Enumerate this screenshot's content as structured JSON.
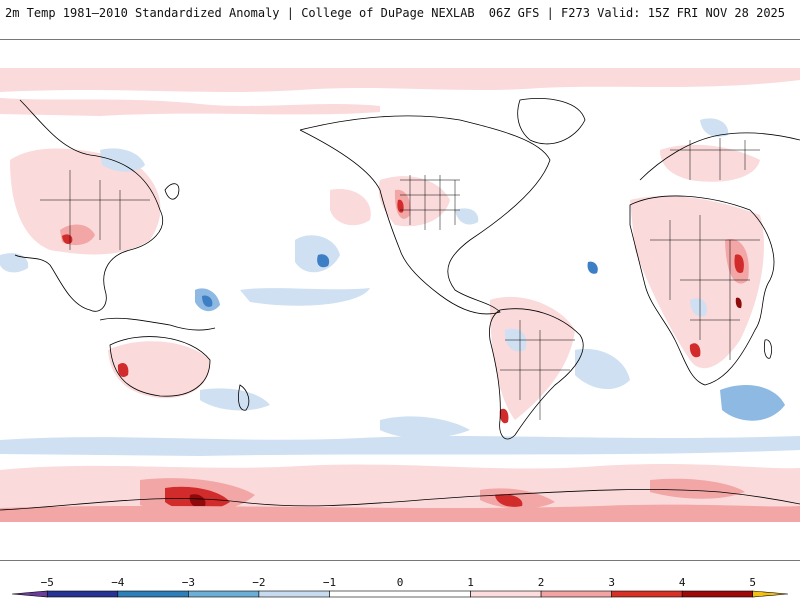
{
  "header": {
    "title_left": "2m Temp 1981–2010 Standardized Anomaly | College of DuPage NEXLAB",
    "title_right": "06Z GFS | F273 Valid: 15Z FRI NOV 28 2025"
  },
  "colorbar": {
    "tick_labels": [
      "−5",
      "−4",
      "−3",
      "−2",
      "−1",
      "0",
      "1",
      "2",
      "3",
      "4",
      "5"
    ],
    "ticks": [
      -5,
      -4,
      -3,
      -2,
      -1,
      0,
      1,
      2,
      3,
      4,
      5
    ],
    "range": [
      -5.5,
      5.5
    ],
    "bins": [
      {
        "min": -5.5,
        "max": -5,
        "color": "#6a3d9a"
      },
      {
        "min": -5,
        "max": -4,
        "color": "#253494"
      },
      {
        "min": -4,
        "max": -3,
        "color": "#2c7fb8"
      },
      {
        "min": -3,
        "max": -2,
        "color": "#6baed6"
      },
      {
        "min": -2,
        "max": -1,
        "color": "#c6dbef"
      },
      {
        "min": -1,
        "max": 1,
        "color": "#ffffff"
      },
      {
        "min": 1,
        "max": 2,
        "color": "#fcdcdc"
      },
      {
        "min": 2,
        "max": 3,
        "color": "#f4a3a3"
      },
      {
        "min": 3,
        "max": 4,
        "color": "#d73027"
      },
      {
        "min": 4,
        "max": 5,
        "color": "#9e0a0a"
      },
      {
        "min": 5,
        "max": 5.5,
        "color": "#f5c016"
      }
    ]
  },
  "map": {
    "projection": "global equirectangular",
    "colors": {
      "light_pink": "#fadada",
      "medium_pink": "#f2a6a6",
      "red": "#d22b2b",
      "dark_red": "#8e0b0b",
      "light_blue": "#cfe0f2",
      "medium_blue": "#8db9e2",
      "blue": "#3d7fc4",
      "dark_blue": "#23408e",
      "coastline": "#000000"
    }
  }
}
